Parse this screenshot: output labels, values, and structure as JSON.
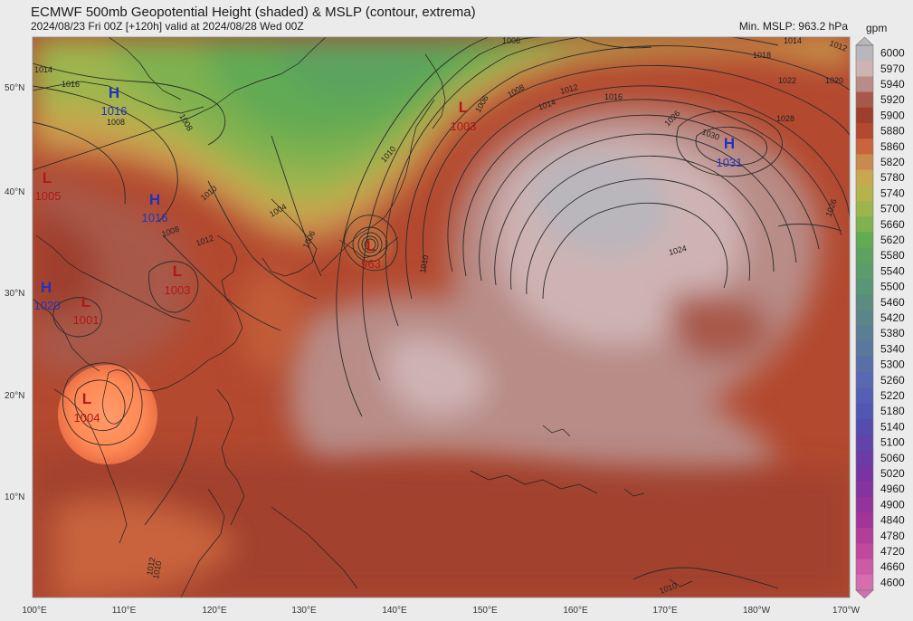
{
  "header": {
    "title": "ECMWF 500mb Geopotential Height (shaded) & MSLP (contour, extrema)",
    "subtitle": "2024/08/23 Fri 00Z [+120h] valid at 2024/08/28 Wed 00Z",
    "min_mslp": "Min. MSLP: 963.2 hPa"
  },
  "colorbar": {
    "units": "gpm",
    "levels": [
      "6000",
      "5970",
      "5940",
      "5920",
      "5900",
      "5880",
      "5860",
      "5820",
      "5780",
      "5740",
      "5700",
      "5660",
      "5620",
      "5580",
      "5540",
      "5500",
      "5460",
      "5420",
      "5380",
      "5340",
      "5300",
      "5260",
      "5220",
      "5180",
      "5140",
      "5100",
      "5060",
      "5020",
      "4960",
      "4900",
      "4840",
      "4780",
      "4720",
      "4660",
      "4600"
    ],
    "colors": [
      "#b9b6bc",
      "#cfb3b3",
      "#b88c87",
      "#a8584a",
      "#9e3f2e",
      "#b3492f",
      "#c9643d",
      "#c98b4d",
      "#c8a84e",
      "#b6b24c",
      "#9cb64d",
      "#7fb14f",
      "#62aa53",
      "#5ca35f",
      "#5a9c6a",
      "#5a9575",
      "#5a8d80",
      "#5a868a",
      "#5a7e94",
      "#5a779e",
      "#5a6fa8",
      "#5a68b2",
      "#5560b5",
      "#5257b4",
      "#554cb0",
      "#6143aa",
      "#6c3ba6",
      "#7734a2",
      "#85339f",
      "#94339c",
      "#a33599",
      "#b23e9a",
      "#c0499e",
      "#cc5aa6",
      "#d56eae"
    ]
  },
  "axes": {
    "lat_labels": [
      "50°N",
      "40°N",
      "30°N",
      "20°N",
      "10°N"
    ],
    "lon_labels": [
      "100°E",
      "110°E",
      "120°E",
      "130°E",
      "140°E",
      "150°E",
      "160°E",
      "170°E",
      "180°W",
      "170°W"
    ]
  },
  "extrema": [
    {
      "type": "H",
      "value": "1016",
      "color": "#2233bb"
    },
    {
      "type": "L",
      "value": "1005",
      "color": "#b01818"
    },
    {
      "type": "H",
      "value": "1016",
      "color": "#2233bb"
    },
    {
      "type": "L",
      "value": "1003",
      "color": "#b01818"
    },
    {
      "type": "H",
      "value": "1020",
      "color": "#2233bb"
    },
    {
      "type": "L",
      "value": "1001",
      "color": "#b01818"
    },
    {
      "type": "L",
      "value": "1004",
      "color": "#b01818"
    },
    {
      "type": "L",
      "value": "963",
      "color": "#b01818"
    },
    {
      "type": "L",
      "value": "1003",
      "color": "#b01818"
    },
    {
      "type": "H",
      "value": "1031",
      "color": "#2233bb"
    }
  ],
  "contour_labels": [
    "1014",
    "1016",
    "1008",
    "1010",
    "1012",
    "1006",
    "1008",
    "1010",
    "1004",
    "1006",
    "1010",
    "1006",
    "1008",
    "1012",
    "1014",
    "1016",
    "1026",
    "1030",
    "1028",
    "1026",
    "1024",
    "1018",
    "1022",
    "1020",
    "1014",
    "1012",
    "1008",
    "1010",
    "1012",
    "1010"
  ]
}
